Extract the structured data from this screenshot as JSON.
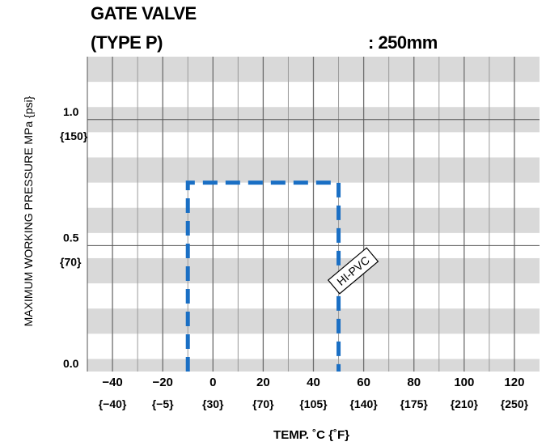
{
  "header": {
    "title": "GATE VALVE",
    "type_label": "(TYPE P)",
    "size_label": ": 250mm"
  },
  "chart_data": {
    "type": "line",
    "title": "GATE VALVE",
    "xlabel": "TEMP. ˚C {˚F}",
    "ylabel": "MAXIMUM WORKING PRESSURE   MPa {psi}",
    "xlim": [
      -50,
      130
    ],
    "ylim": [
      0,
      1.25
    ],
    "x_ticks": [
      {
        "c": "−40",
        "f": "{−40}",
        "v": -40
      },
      {
        "c": "−20",
        "f": "{−5}",
        "v": -20
      },
      {
        "c": "0",
        "f": "{30}",
        "v": 0
      },
      {
        "c": "20",
        "f": "{70}",
        "v": 20
      },
      {
        "c": "40",
        "f": "{105}",
        "v": 40
      },
      {
        "c": "60",
        "f": "{140}",
        "v": 60
      },
      {
        "c": "80",
        "f": "{175}",
        "v": 80
      },
      {
        "c": "100",
        "f": "{210}",
        "v": 100
      },
      {
        "c": "120",
        "f": "{250}",
        "v": 120
      }
    ],
    "y_ticks": [
      {
        "label": "1.0",
        "psi": "{150}",
        "v": 1.0
      },
      {
        "label": "0.5",
        "psi": "{70}",
        "v": 0.5
      },
      {
        "label": "0.0",
        "psi": "",
        "v": 0.0
      }
    ],
    "series": [
      {
        "name": "HI-PVC",
        "style": "dashed",
        "color": "#1a6fc4",
        "x": [
          -10,
          -10,
          50,
          50
        ],
        "y": [
          0.0,
          0.75,
          0.75,
          0.0
        ]
      }
    ],
    "grid": true,
    "band_color": "#d9d9d9"
  }
}
